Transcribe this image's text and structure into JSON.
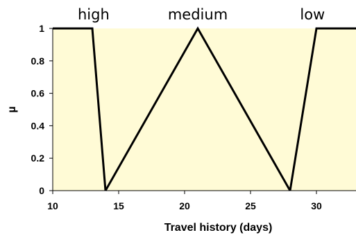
{
  "chart_data": {
    "type": "line",
    "xlabel": "Travel history (days)",
    "ylabel": "µ",
    "xlim": [
      10,
      33
    ],
    "ylim": [
      0,
      1
    ],
    "x_ticks": [
      "10",
      "15",
      "20",
      "25",
      "30"
    ],
    "y_ticks": [
      "0",
      "0.2",
      "0.4",
      "0.6",
      "0.8",
      "1"
    ],
    "grid": false,
    "plot_background": "#fffbd6",
    "line_color": "#000000",
    "series": [
      {
        "name": "high",
        "points": [
          [
            10,
            1
          ],
          [
            13,
            1
          ],
          [
            14,
            0
          ]
        ]
      },
      {
        "name": "medium",
        "points": [
          [
            14,
            0
          ],
          [
            21,
            1
          ],
          [
            28,
            0
          ]
        ]
      },
      {
        "name": "low",
        "points": [
          [
            28,
            0
          ],
          [
            30,
            1
          ],
          [
            33,
            1
          ]
        ]
      }
    ],
    "series_label_x": [
      13.1,
      21,
      29.7
    ]
  }
}
